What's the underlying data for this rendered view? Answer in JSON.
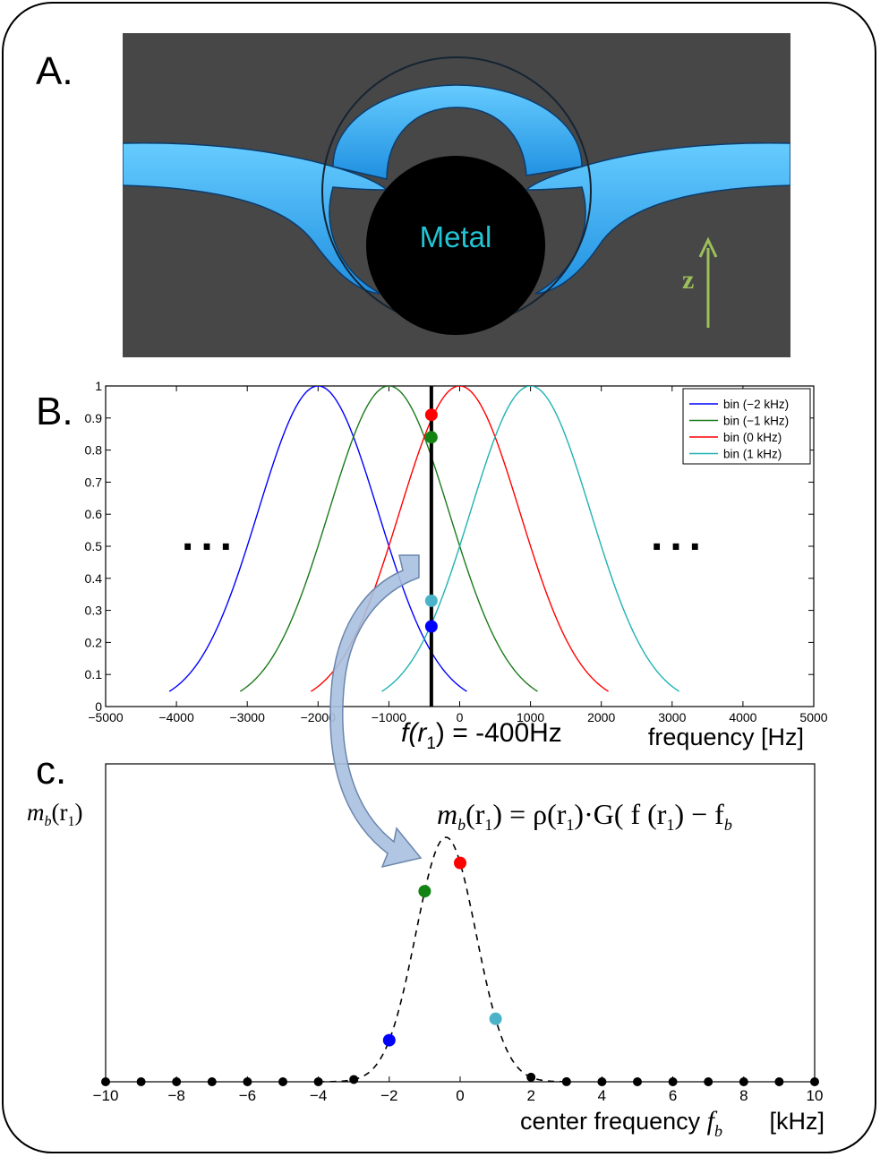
{
  "panel_a": {
    "label": "A.",
    "metal_label": "Metal",
    "axis_label": "z",
    "colors": {
      "background": "#474747",
      "band": "#2aa9f0",
      "band_dark": "#0d5fa8",
      "metal": "#000000",
      "metal_text": "#22c4d4",
      "arrow": "#9bbf5a"
    }
  },
  "panel_b": {
    "label": "B.",
    "dots_left": "...",
    "dots_right": "...",
    "marker_label": "f(r",
    "marker_sub": "1",
    "marker_value": ") = -400Hz",
    "chart_data": {
      "type": "line",
      "xlabel": "frequency [Hz]",
      "xlim": [
        -5000,
        5000
      ],
      "ylim": [
        0,
        1
      ],
      "xticks": [
        -5000,
        -4000,
        -3000,
        -2000,
        -1000,
        0,
        1000,
        2000,
        3000,
        4000,
        5000
      ],
      "xtick_labels": [
        "−5000",
        "−4000",
        "−3000",
        "−2000",
        "−1000",
        "0",
        "1000",
        "2000",
        "3000",
        "4000",
        "5000"
      ],
      "yticks": [
        0,
        0.1,
        0.2,
        0.3,
        0.4,
        0.5,
        0.6,
        0.7,
        0.8,
        0.9,
        1
      ],
      "ytick_labels": [
        "0",
        "0.1",
        "0.2",
        "0.3",
        "0.4",
        "0.5",
        "0.6",
        "0.7",
        "0.8",
        "0.9",
        "1"
      ],
      "gaussian_sigma_hz": 850,
      "x_span_offset_hz": [
        -2100,
        2100
      ],
      "legend_position": "top-right",
      "series": [
        {
          "name": "bin (−2 kHz)",
          "center": -2000,
          "color": "#0000ff"
        },
        {
          "name": "bin (−1 kHz)",
          "center": -1000,
          "color": "#1a7a1a"
        },
        {
          "name": "bin (0 kHz)",
          "center": 0,
          "color": "#ff0000"
        },
        {
          "name": "bin (1 kHz)",
          "center": 1000,
          "color": "#20b2b2"
        }
      ],
      "vertical_line_x": -400,
      "intersections": [
        {
          "y": 0.91,
          "color": "#ff0000"
        },
        {
          "y": 0.84,
          "color": "#138413"
        },
        {
          "y": 0.33,
          "color": "#4bb3c9"
        },
        {
          "y": 0.25,
          "color": "#0000ff"
        }
      ]
    }
  },
  "panel_c": {
    "label": "c.",
    "ylabel_main": "m",
    "ylabel_sub_b": "b",
    "ylabel_open": "(r",
    "ylabel_sub_1": "1",
    "ylabel_close": ")",
    "equation_lhs_m": "m",
    "equation_lhs_sub_b": "b",
    "equation_lhs_r": "(r",
    "equation_lhs_sub_1": "1",
    "equation_lhs_close": ") = ρ(r",
    "equation_rho_sub": "1",
    "equation_mid": ")·G( f (r",
    "equation_f_sub": "1",
    "equation_tail": ") − f",
    "equation_tail_sub": "b",
    "xlabel_text": "center frequency ",
    "xlabel_f": "f",
    "xlabel_sub": "b",
    "xlabel_unit": "[kHz]",
    "chart_data": {
      "type": "scatter",
      "xlim": [
        -10,
        10
      ],
      "xticks": [
        -10,
        -8,
        -6,
        -4,
        -2,
        0,
        2,
        4,
        6,
        8,
        10
      ],
      "xtick_labels": [
        "−10",
        "−8",
        "−6",
        "−4",
        "−2",
        "0",
        "2",
        "4",
        "6",
        "8",
        "10"
      ],
      "curve": {
        "center_khz": -0.4,
        "sigma_khz": 0.85,
        "style": "dashed",
        "color": "#000000"
      },
      "points_x": [
        -10,
        -9,
        -8,
        -7,
        -6,
        -5,
        -4,
        -3,
        -2,
        -1,
        0,
        1,
        2,
        3,
        4,
        5,
        6,
        7,
        8,
        9,
        10
      ],
      "highlight": [
        {
          "x": -2,
          "color": "#0000ff"
        },
        {
          "x": -1,
          "color": "#138413"
        },
        {
          "x": 0,
          "color": "#ff0000"
        },
        {
          "x": 1,
          "color": "#4bb3c9"
        }
      ]
    }
  },
  "arrow_color": "#a9c0df"
}
